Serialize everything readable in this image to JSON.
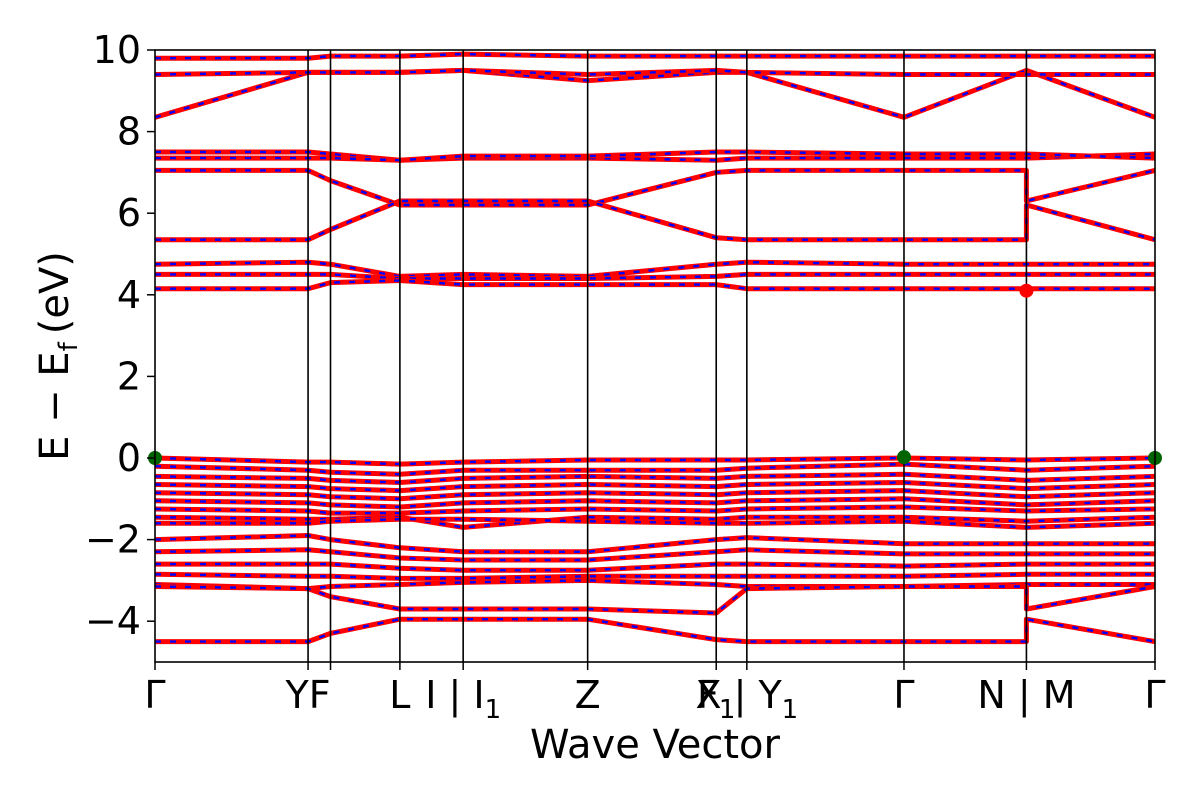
{
  "chart_data": {
    "type": "line",
    "title": "",
    "xlabel": "Wave Vector",
    "ylabel": "E − E",
    "ylabel_subscript": "f",
    "ylabel_unit": "(eV)",
    "ylim": [
      -5,
      10
    ],
    "yticks": [
      -4,
      -2,
      0,
      2,
      4,
      6,
      8,
      10
    ],
    "ytick_labels": [
      "−4",
      "−2",
      "0",
      "2",
      "4",
      "6",
      "8",
      "10"
    ],
    "xlim": [
      0,
      4.9
    ],
    "kpoints": [
      {
        "x": 0.0,
        "label": "Γ"
      },
      {
        "x": 0.75,
        "label": "YF"
      },
      {
        "x": 0.86,
        "label": ""
      },
      {
        "x": 1.2,
        "label": "L"
      },
      {
        "x": 1.51,
        "label": "I | I",
        "sub": "1"
      },
      {
        "x": 2.12,
        "label": "Z"
      },
      {
        "x": 2.75,
        "label": "F",
        "sub": "1"
      },
      {
        "x": 2.9,
        "label": "X | Y",
        "sub": "1"
      },
      {
        "x": 3.67,
        "label": "Γ"
      },
      {
        "x": 4.27,
        "label": "N | M"
      },
      {
        "x": 4.9,
        "label": "Γ"
      }
    ],
    "line_colors": {
      "spin_up": "#0000ff",
      "spin_down": "#ff0000",
      "kpath": "#000000"
    },
    "bands": [
      {
        "x": [
          0,
          0.75,
          0.86,
          1.2,
          1.51,
          2.12,
          2.75,
          2.9,
          3.67,
          4.27,
          4.9
        ],
        "y": [
          8.35,
          9.45,
          9.45,
          9.45,
          9.5,
          9.25,
          9.45,
          9.45,
          8.35,
          9.5,
          8.35
        ]
      },
      {
        "x": [
          0,
          0.75,
          0.86,
          1.2,
          1.51,
          2.12,
          2.75,
          2.9,
          3.67,
          4.27,
          4.9
        ],
        "y": [
          9.4,
          9.45,
          9.45,
          9.45,
          9.5,
          9.4,
          9.5,
          9.45,
          9.4,
          9.4,
          9.4
        ]
      },
      {
        "x": [
          0,
          0.75,
          0.86,
          1.2,
          1.51,
          2.12,
          2.75,
          2.9,
          3.67,
          4.27,
          4.9
        ],
        "y": [
          9.8,
          9.8,
          9.85,
          9.85,
          9.9,
          9.85,
          9.85,
          9.85,
          9.85,
          9.85,
          9.85
        ]
      },
      {
        "x": [
          0,
          0.75,
          0.86,
          1.2,
          1.51,
          2.12,
          2.75,
          2.9,
          3.67,
          4.27,
          4.9
        ],
        "y": [
          7.5,
          7.5,
          7.45,
          7.3,
          7.35,
          7.35,
          7.3,
          7.35,
          7.35,
          7.35,
          7.45
        ]
      },
      {
        "x": [
          0,
          0.75,
          0.86,
          1.2,
          1.51,
          2.12,
          2.75,
          2.9,
          3.67,
          4.27,
          4.9
        ],
        "y": [
          7.35,
          7.35,
          7.35,
          7.3,
          7.4,
          7.4,
          7.5,
          7.5,
          7.45,
          7.45,
          7.35
        ]
      },
      {
        "x": [
          0,
          0.75,
          0.86,
          1.2,
          1.51,
          2.12,
          2.75,
          2.9,
          3.67,
          4.27,
          4.27,
          4.9
        ],
        "y": [
          7.05,
          7.05,
          6.8,
          6.2,
          6.2,
          6.2,
          7.0,
          7.05,
          7.05,
          7.05,
          6.3,
          7.05
        ]
      },
      {
        "x": [
          0,
          0.75,
          0.86,
          1.2,
          1.51,
          2.12,
          2.75,
          2.9,
          3.67,
          4.27,
          4.27,
          4.9
        ],
        "y": [
          5.35,
          5.35,
          5.6,
          6.3,
          6.3,
          6.3,
          5.4,
          5.35,
          5.35,
          5.35,
          6.2,
          5.35
        ]
      },
      {
        "x": [
          0,
          0.75,
          0.86,
          1.2,
          1.51,
          2.12,
          2.75,
          2.9,
          3.67,
          4.27,
          4.9
        ],
        "y": [
          4.75,
          4.8,
          4.75,
          4.45,
          4.5,
          4.45,
          4.75,
          4.8,
          4.75,
          4.75,
          4.75
        ]
      },
      {
        "x": [
          0,
          0.75,
          0.86,
          1.2,
          1.51,
          2.12,
          2.75,
          2.9,
          3.67,
          4.27,
          4.9
        ],
        "y": [
          4.5,
          4.5,
          4.5,
          4.4,
          4.4,
          4.4,
          4.45,
          4.5,
          4.5,
          4.5,
          4.5
        ]
      },
      {
        "x": [
          0,
          0.75,
          0.86,
          1.2,
          1.51,
          2.12,
          2.75,
          2.9,
          3.67,
          4.27,
          4.9
        ],
        "y": [
          4.15,
          4.15,
          4.3,
          4.35,
          4.25,
          4.25,
          4.25,
          4.15,
          4.15,
          4.15,
          4.15
        ]
      },
      {
        "x": [
          0,
          0.75,
          0.86,
          1.2,
          1.51,
          2.12,
          2.75,
          2.9,
          3.67,
          4.27,
          4.9
        ],
        "y": [
          0.0,
          -0.1,
          -0.1,
          -0.15,
          -0.1,
          -0.05,
          -0.05,
          -0.05,
          0.0,
          -0.05,
          0.0
        ]
      },
      {
        "x": [
          0,
          0.75,
          0.86,
          1.2,
          1.51,
          2.12,
          2.75,
          2.9,
          3.67,
          4.27,
          4.9
        ],
        "y": [
          -0.2,
          -0.3,
          -0.35,
          -0.4,
          -0.3,
          -0.3,
          -0.3,
          -0.25,
          -0.15,
          -0.3,
          -0.2
        ]
      },
      {
        "x": [
          0,
          0.75,
          0.86,
          1.2,
          1.51,
          2.12,
          2.75,
          2.9,
          3.67,
          4.27,
          4.9
        ],
        "y": [
          -0.45,
          -0.5,
          -0.55,
          -0.6,
          -0.5,
          -0.45,
          -0.5,
          -0.45,
          -0.4,
          -0.55,
          -0.45
        ]
      },
      {
        "x": [
          0,
          0.75,
          0.86,
          1.2,
          1.51,
          2.12,
          2.75,
          2.9,
          3.67,
          4.27,
          4.9
        ],
        "y": [
          -0.65,
          -0.7,
          -0.75,
          -0.8,
          -0.7,
          -0.65,
          -0.7,
          -0.65,
          -0.6,
          -0.75,
          -0.65
        ]
      },
      {
        "x": [
          0,
          0.75,
          0.86,
          1.2,
          1.51,
          2.12,
          2.75,
          2.9,
          3.67,
          4.27,
          4.9
        ],
        "y": [
          -0.85,
          -0.9,
          -0.95,
          -1.0,
          -0.9,
          -0.85,
          -0.9,
          -0.85,
          -0.8,
          -0.95,
          -0.85
        ]
      },
      {
        "x": [
          0,
          0.75,
          0.86,
          1.2,
          1.51,
          2.12,
          2.75,
          2.9,
          3.67,
          4.27,
          4.9
        ],
        "y": [
          -1.05,
          -1.1,
          -1.15,
          -1.2,
          -1.1,
          -1.05,
          -1.1,
          -1.05,
          -1.0,
          -1.15,
          -1.05
        ]
      },
      {
        "x": [
          0,
          0.75,
          0.86,
          1.2,
          1.51,
          2.12,
          2.75,
          2.9,
          3.67,
          4.27,
          4.9
        ],
        "y": [
          -1.25,
          -1.3,
          -1.35,
          -1.35,
          -1.3,
          -1.25,
          -1.3,
          -1.25,
          -1.2,
          -1.3,
          -1.25
        ]
      },
      {
        "x": [
          0,
          0.75,
          0.86,
          1.2,
          1.51,
          2.12,
          2.75,
          2.9,
          3.67,
          4.27,
          4.9
        ],
        "y": [
          -1.45,
          -1.5,
          -1.5,
          -1.45,
          -1.7,
          -1.45,
          -1.5,
          -1.45,
          -1.45,
          -1.55,
          -1.45
        ]
      },
      {
        "x": [
          0,
          0.75,
          0.86,
          1.2,
          1.51,
          2.12,
          2.75,
          2.9,
          3.67,
          4.27,
          4.9
        ],
        "y": [
          -1.6,
          -1.6,
          -1.55,
          -1.5,
          -1.5,
          -1.55,
          -1.6,
          -1.6,
          -1.55,
          -1.7,
          -1.6
        ]
      },
      {
        "x": [
          0,
          0.75,
          0.86,
          1.2,
          1.51,
          2.12,
          2.75,
          2.9,
          3.67,
          4.27,
          4.9
        ],
        "y": [
          -2.0,
          -1.9,
          -2.0,
          -2.2,
          -2.3,
          -2.3,
          -2.0,
          -1.95,
          -2.1,
          -2.1,
          -2.1
        ]
      },
      {
        "x": [
          0,
          0.75,
          0.86,
          1.2,
          1.51,
          2.12,
          2.75,
          2.9,
          3.67,
          4.27,
          4.9
        ],
        "y": [
          -2.3,
          -2.25,
          -2.3,
          -2.45,
          -2.5,
          -2.5,
          -2.3,
          -2.25,
          -2.35,
          -2.35,
          -2.35
        ]
      },
      {
        "x": [
          0,
          0.75,
          0.86,
          1.2,
          1.51,
          2.12,
          2.75,
          2.9,
          3.67,
          4.27,
          4.9
        ],
        "y": [
          -2.6,
          -2.6,
          -2.6,
          -2.7,
          -2.75,
          -2.75,
          -2.6,
          -2.6,
          -2.65,
          -2.6,
          -2.6
        ]
      },
      {
        "x": [
          0,
          0.75,
          0.86,
          1.2,
          1.51,
          2.12,
          2.75,
          2.9,
          3.67,
          4.27,
          4.9
        ],
        "y": [
          -2.85,
          -2.9,
          -2.9,
          -2.95,
          -2.95,
          -2.9,
          -2.9,
          -2.9,
          -2.9,
          -2.85,
          -2.85
        ]
      },
      {
        "x": [
          0,
          0.75,
          0.86,
          1.2,
          1.51,
          2.12,
          2.75,
          2.9,
          3.67,
          4.27,
          4.9
        ],
        "y": [
          -3.1,
          -3.2,
          -3.15,
          -3.1,
          -3.05,
          -3.0,
          -3.1,
          -3.15,
          -3.15,
          -3.1,
          -3.1
        ]
      },
      {
        "x": [
          0,
          0.75,
          0.86,
          1.2,
          1.51,
          2.12,
          2.75,
          2.9,
          3.67,
          4.27,
          4.27,
          4.9
        ],
        "y": [
          -3.15,
          -3.2,
          -3.4,
          -3.7,
          -3.7,
          -3.7,
          -3.8,
          -3.2,
          -3.15,
          -3.15,
          -3.7,
          -3.15
        ]
      },
      {
        "x": [
          0,
          0.75,
          0.86,
          1.2,
          1.51,
          2.12,
          2.75,
          2.9,
          3.67,
          4.27,
          4.27,
          4.9
        ],
        "y": [
          -4.5,
          -4.5,
          -4.3,
          -3.95,
          -3.95,
          -3.95,
          -4.45,
          -4.5,
          -4.5,
          -4.5,
          -3.95,
          -4.5
        ]
      }
    ],
    "points": [
      {
        "x": 0.0,
        "y": 0.0,
        "color": "#006400"
      },
      {
        "x": 3.67,
        "y": 0.02,
        "color": "#006400"
      },
      {
        "x": 4.9,
        "y": 0.0,
        "color": "#006400"
      },
      {
        "x": 4.27,
        "y": 4.1,
        "color": "#ff0000"
      }
    ]
  }
}
